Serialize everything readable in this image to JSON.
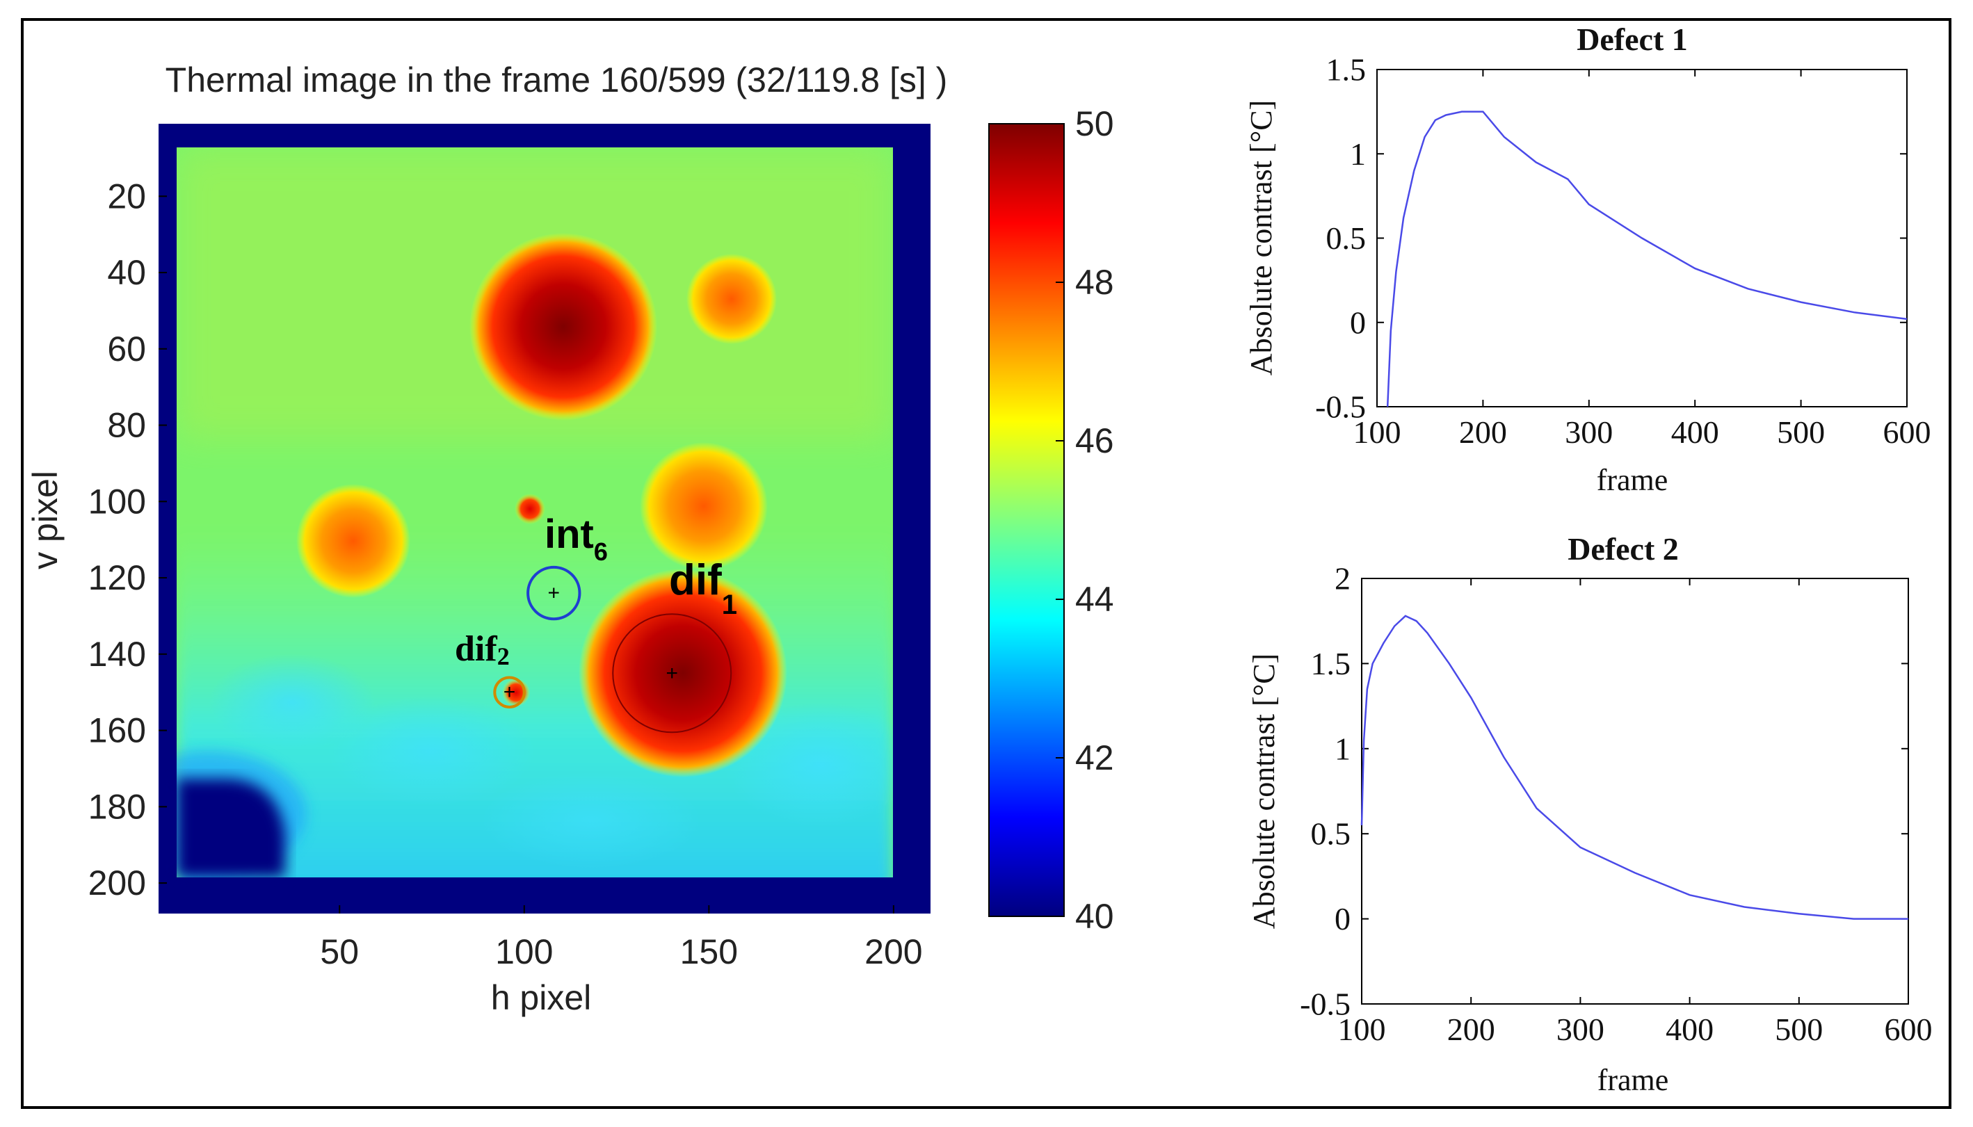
{
  "colors": {
    "border": "#000000",
    "line": "#4a4ae8",
    "roi_int": "#1f3fd0",
    "roi_dif2": "#d08a00",
    "colormap": [
      "#00007f",
      "#0000ff",
      "#00ffff",
      "#80ff80",
      "#ffff00",
      "#ff0000",
      "#7f0000"
    ]
  },
  "thermal": {
    "title": "Thermal image in the frame 160/599 (32/119.8 [s] )",
    "xlabel": "h pixel",
    "ylabel": "v pixel",
    "xlim": [
      1,
      210
    ],
    "ylim": [
      1,
      208
    ],
    "xticks": [
      {
        "value": 50,
        "label": "50"
      },
      {
        "value": 100,
        "label": "100"
      },
      {
        "value": 150,
        "label": "150"
      },
      {
        "value": 200,
        "label": "200"
      }
    ],
    "yticks": [
      {
        "value": 20,
        "label": "20"
      },
      {
        "value": 40,
        "label": "40"
      },
      {
        "value": 60,
        "label": "60"
      },
      {
        "value": 80,
        "label": "80"
      },
      {
        "value": 100,
        "label": "100"
      },
      {
        "value": 120,
        "label": "120"
      },
      {
        "value": 140,
        "label": "140"
      },
      {
        "value": 160,
        "label": "160"
      },
      {
        "value": 180,
        "label": "180"
      },
      {
        "value": 200,
        "label": "200"
      }
    ],
    "annotations": {
      "int6": {
        "base": "int",
        "sub": "6",
        "cx": 108,
        "cy": 124,
        "r": 7
      },
      "dif1": {
        "base": "dif",
        "sub": "1",
        "cx": 140,
        "cy": 145,
        "r": 16
      },
      "dif2": {
        "base": "dif",
        "sub": "2",
        "cx": 96,
        "cy": 150,
        "r": 4
      }
    }
  },
  "colorbar": {
    "min": 40,
    "max": 50,
    "ticks": [
      {
        "value": 50,
        "label": "50"
      },
      {
        "value": 48,
        "label": "48"
      },
      {
        "value": 46,
        "label": "46"
      },
      {
        "value": 44,
        "label": "44"
      },
      {
        "value": 42,
        "label": "42"
      },
      {
        "value": 40,
        "label": "40"
      }
    ]
  },
  "chart_data": [
    {
      "type": "line",
      "title": "Defect 1",
      "xlabel": "frame",
      "ylabel": "Absolute contrast [°C]",
      "xlim": [
        100,
        600
      ],
      "ylim": [
        -0.5,
        1.5
      ],
      "xticks": [
        {
          "value": 100,
          "label": "100"
        },
        {
          "value": 200,
          "label": "200"
        },
        {
          "value": 300,
          "label": "300"
        },
        {
          "value": 400,
          "label": "400"
        },
        {
          "value": 500,
          "label": "500"
        },
        {
          "value": 600,
          "label": "600"
        }
      ],
      "yticks": [
        {
          "value": 1.5,
          "label": "1.5"
        },
        {
          "value": 1,
          "label": "1"
        },
        {
          "value": 0.5,
          "label": "0.5"
        },
        {
          "value": 0,
          "label": "0"
        },
        {
          "value": -0.5,
          "label": "-0.5"
        }
      ],
      "series": [
        {
          "name": "Defect 1",
          "x": [
            110,
            113,
            118,
            125,
            135,
            145,
            155,
            165,
            180,
            200,
            220,
            250,
            280,
            300,
            350,
            400,
            450,
            500,
            550,
            600
          ],
          "y": [
            -0.5,
            -0.05,
            0.3,
            0.62,
            0.9,
            1.1,
            1.2,
            1.23,
            1.25,
            1.25,
            1.1,
            0.95,
            0.85,
            0.7,
            0.5,
            0.32,
            0.2,
            0.12,
            0.06,
            0.02
          ]
        }
      ]
    },
    {
      "type": "line",
      "title": "Defect 2",
      "xlabel": "frame",
      "ylabel": "Absolute contrast [°C]",
      "xlim": [
        100,
        600
      ],
      "ylim": [
        -0.5,
        2
      ],
      "xticks": [
        {
          "value": 100,
          "label": "100"
        },
        {
          "value": 200,
          "label": "200"
        },
        {
          "value": 300,
          "label": "300"
        },
        {
          "value": 400,
          "label": "400"
        },
        {
          "value": 500,
          "label": "500"
        },
        {
          "value": 600,
          "label": "600"
        }
      ],
      "yticks": [
        {
          "value": 2,
          "label": "2"
        },
        {
          "value": 1.5,
          "label": "1.5"
        },
        {
          "value": 1,
          "label": "1"
        },
        {
          "value": 0.5,
          "label": "0.5"
        },
        {
          "value": 0,
          "label": "0"
        },
        {
          "value": -0.5,
          "label": "-0.5"
        }
      ],
      "series": [
        {
          "name": "Defect 2",
          "x": [
            100,
            102,
            105,
            110,
            120,
            130,
            140,
            150,
            160,
            180,
            200,
            230,
            260,
            300,
            350,
            400,
            450,
            500,
            550,
            600
          ],
          "y": [
            0.55,
            1.05,
            1.35,
            1.5,
            1.62,
            1.72,
            1.78,
            1.75,
            1.68,
            1.5,
            1.3,
            0.95,
            0.65,
            0.42,
            0.27,
            0.14,
            0.07,
            0.03,
            0.0,
            0.0
          ]
        }
      ]
    }
  ]
}
